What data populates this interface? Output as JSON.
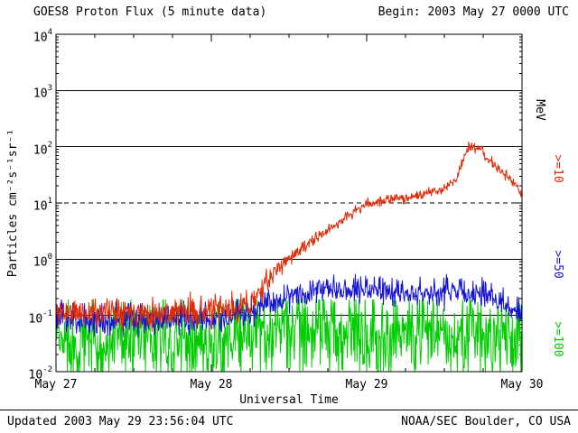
{
  "footer": {
    "updated": "Updated 2003 May 29 23:56:04 UTC",
    "credit": "NOAA/SEC Boulder, CO USA"
  },
  "chart_data": {
    "type": "line",
    "title": "GOES8 Proton Flux (5 minute data)",
    "begin": "Begin: 2003 May 27 0000 UTC",
    "xlabel": "Universal Time",
    "ylabel": "Particles  cm⁻²s⁻¹sr⁻¹",
    "right_axis_label": "MeV",
    "x_start": "2003 May 27 0000 UTC",
    "x_range_days": [
      0,
      3
    ],
    "x_tick_labels": [
      "May 27",
      "May 28",
      "May 29",
      "May 30"
    ],
    "y_scale": "log10",
    "y_log_range": [
      -2,
      4
    ],
    "y_tick_exponents": [
      4,
      3,
      2,
      1,
      0,
      -1,
      -2
    ],
    "solid_gridline_exponents": [
      3,
      2,
      0,
      -1
    ],
    "dashed_threshold_flux": 10,
    "sample_interval_minutes": 5,
    "grid": "horizontal-only",
    "legend_position": "right-rotated",
    "series": [
      {
        "id": "ge10",
        "name": ">=10 MeV",
        "label": ">=10",
        "color": "#dc2b08",
        "label_cy": 187,
        "noise_seed": 11,
        "clip_log": [
          -2,
          4
        ],
        "trend_day_flux": [
          [
            0,
            0.12
          ],
          [
            0.2,
            0.11
          ],
          [
            0.4,
            0.13
          ],
          [
            0.6,
            0.11
          ],
          [
            0.8,
            0.12
          ],
          [
            1,
            0.12
          ],
          [
            1.15,
            0.13
          ],
          [
            1.25,
            0.16
          ],
          [
            1.32,
            0.28
          ],
          [
            1.4,
            0.55
          ],
          [
            1.48,
            0.95
          ],
          [
            1.58,
            1.5
          ],
          [
            1.7,
            2.6
          ],
          [
            1.82,
            4.5
          ],
          [
            1.92,
            7
          ],
          [
            2,
            9.5
          ],
          [
            2.1,
            11
          ],
          [
            2.2,
            12
          ],
          [
            2.3,
            13
          ],
          [
            2.4,
            15
          ],
          [
            2.5,
            18
          ],
          [
            2.58,
            28
          ],
          [
            2.63,
            70
          ],
          [
            2.66,
            105
          ],
          [
            2.7,
            92
          ],
          [
            2.74,
            85
          ],
          [
            2.78,
            60
          ],
          [
            2.85,
            40
          ],
          [
            2.92,
            27
          ],
          [
            3,
            15
          ]
        ],
        "noise_day_sigma": [
          [
            0,
            0.13
          ],
          [
            1.25,
            0.13
          ],
          [
            1.45,
            0.07
          ],
          [
            1.7,
            0.05
          ],
          [
            2.55,
            0.04
          ],
          [
            2.8,
            0.045
          ],
          [
            3,
            0.055
          ]
        ]
      },
      {
        "id": "ge50",
        "name": ">=50 MeV",
        "label": ">=50",
        "color": "#1414d2",
        "label_cy": 293,
        "noise_seed": 23,
        "clip_log": [
          -2,
          -0.22
        ],
        "trend_day_flux": [
          [
            0,
            0.09
          ],
          [
            0.3,
            0.08
          ],
          [
            0.6,
            0.09
          ],
          [
            0.9,
            0.08
          ],
          [
            1.1,
            0.09
          ],
          [
            1.25,
            0.11
          ],
          [
            1.4,
            0.18
          ],
          [
            1.55,
            0.25
          ],
          [
            1.7,
            0.3
          ],
          [
            1.85,
            0.32
          ],
          [
            2,
            0.3
          ],
          [
            2.2,
            0.26
          ],
          [
            2.4,
            0.25
          ],
          [
            2.6,
            0.28
          ],
          [
            2.75,
            0.24
          ],
          [
            2.85,
            0.18
          ],
          [
            2.95,
            0.13
          ],
          [
            3,
            0.11
          ]
        ],
        "noise_day_sigma": [
          [
            0,
            0.15
          ],
          [
            1.3,
            0.13
          ],
          [
            1.6,
            0.12
          ],
          [
            3,
            0.12
          ]
        ]
      },
      {
        "id": "ge100",
        "name": ">=100 MeV",
        "label": ">=100",
        "color": "#00cc00",
        "label_cy": 376,
        "noise_seed": 37,
        "clip_log": [
          -2,
          -0.72
        ],
        "trend_day_flux": [
          [
            0,
            0.035
          ],
          [
            0.3,
            0.03
          ],
          [
            0.6,
            0.035
          ],
          [
            0.9,
            0.03
          ],
          [
            1.2,
            0.04
          ],
          [
            1.4,
            0.055
          ],
          [
            1.6,
            0.06
          ],
          [
            1.8,
            0.058
          ],
          [
            2,
            0.05
          ],
          [
            2.2,
            0.05
          ],
          [
            2.4,
            0.048
          ],
          [
            2.6,
            0.05
          ],
          [
            2.8,
            0.04
          ],
          [
            3,
            0.03
          ]
        ],
        "noise_day_sigma": [
          [
            0,
            0.4
          ],
          [
            3,
            0.4
          ]
        ]
      }
    ]
  }
}
